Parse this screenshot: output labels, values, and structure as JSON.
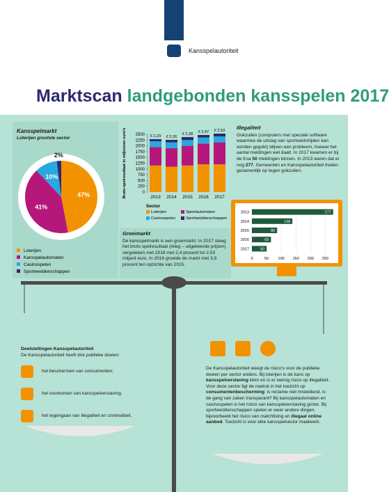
{
  "header": {
    "organization": "Kansspelautoriteit"
  },
  "title": {
    "bold": "Marktscan",
    "rest": "landgebonden kansspelen 2017"
  },
  "chart_data": [
    {
      "type": "pie",
      "title": "Kansspelmarkt",
      "subtitle": "Loterijen grootste sector",
      "categories": [
        "Loterijen",
        "Kansspelautomaten",
        "Casinospelen",
        "Sportweddenschappen"
      ],
      "values": [
        47,
        41,
        10,
        2
      ],
      "value_labels": [
        "47%",
        "41%",
        "10%",
        "2%"
      ],
      "colors": [
        "#f39200",
        "#b5177a",
        "#29a8e0",
        "#2b2a6e"
      ]
    },
    {
      "type": "stacked_bar",
      "y_label": "Bruto-spelresultaat in miljoenen euro's",
      "legend_title": "Sector",
      "categories": [
        "2013",
        "2014",
        "2015",
        "2016",
        "2017"
      ],
      "series": [
        {
          "name": "Loterijen",
          "color": "#f39200",
          "values": [
            1150,
            1100,
            1150,
            1200,
            1200
          ]
        },
        {
          "name": "Speelautomaten",
          "color": "#b5177a",
          "values": [
            800,
            800,
            850,
            900,
            950
          ]
        },
        {
          "name": "Casinospelen",
          "color": "#29a8e0",
          "values": [
            250,
            250,
            250,
            260,
            260
          ]
        },
        {
          "name": "Sportweddenschappen",
          "color": "#2b2a6e",
          "values": [
            90,
            110,
            130,
            110,
            120
          ]
        }
      ],
      "annotations": [
        "€ 2,29",
        "€ 2,26",
        "€ 2,38",
        "€ 2,47",
        "€ 2,53"
      ],
      "ylim": [
        0,
        2500
      ],
      "yticks": [
        0,
        250,
        500,
        750,
        1000,
        1250,
        1500,
        1750,
        2000,
        2250,
        2500
      ]
    },
    {
      "type": "hbar",
      "categories": [
        "2013",
        "2014",
        "2015",
        "2016",
        "2017"
      ],
      "values": [
        277,
        138,
        86,
        65,
        50
      ],
      "color": "#1e5a3c",
      "xlim": [
        0,
        280
      ],
      "xticks": [
        0,
        50,
        100,
        150,
        200,
        250
      ]
    }
  ],
  "illegaliteit": {
    "heading": "Illegaliteit",
    "parts": [
      {
        "text": "Gokzuilen (computers met speciale software waarmee de uitslag van sportwedstrijden kan worden gegokt) blijven een probleem, hoewel het aantal meldingen wel daalt. In 2017 kwamen er bij de Ksa "
      },
      {
        "text": "50",
        "bold": true
      },
      {
        "text": " meldingen binnen. In 2013 waren dat er nog "
      },
      {
        "text": "277",
        "bold": true
      },
      {
        "text": ". Gemeenten en Kansspelautoriteit treden gezamenlijk op tegen gokzuilen."
      }
    ]
  },
  "groeimarkt": {
    "heading": "Groeimarkt",
    "text": "De kansspelmarkt is een groeimarkt. In 2017 steeg het bruto spelresultaat (inleg – uitgekeerde prijzen) vergeleken met 2016 met 2,4 procent tot 2,53 miljard euro. In 2016 groeide de markt met 3,8 procent ten opzichte van 2015."
  },
  "doelstellingen": {
    "heading": "Doelstellingen Kansspelautoriteit",
    "intro": "De Kansspelautoriteit heeft drie publieke doelen:",
    "items": [
      "het beschermen van consumenten;",
      "het voorkomen van kansspelverslaving;",
      "het tegengaan van illegaliteit en criminaliteit."
    ]
  },
  "risico": {
    "parts": [
      {
        "text": "De Kansspelautoriteit weegt de risico's voor de publieke doelen per sector anders. Bij loterijen is de kans op "
      },
      {
        "text": "kansspelverslaving",
        "bold": true
      },
      {
        "text": " klein en is er weinig risico op illegaliteit. Voor deze sector ligt de nadruk in het toezicht op "
      },
      {
        "text": "consumentenbescherming",
        "bold": true
      },
      {
        "text": ": is reclame niet misleidend, is de gang van zaken transparant? Bij kansspelautomaten en casinospelen is het risico van kansspelverslaving groter. Bij sportweddenschappen spelen er weer andere dingen, bijvoorbeeld het risico van matchfixing en "
      },
      {
        "text": "illegaal online aanbod",
        "bold": true
      },
      {
        "text": ". Toezicht is voor elke kansspelsector maatwerk."
      }
    ]
  }
}
